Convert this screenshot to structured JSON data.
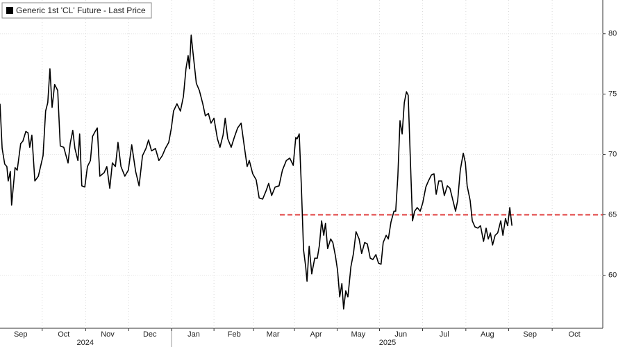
{
  "chart_data": {
    "type": "line",
    "series": [
      {
        "name": "Generic 1st 'CL' Future - Last Price",
        "color": "#000000",
        "values": [
          74.2,
          70.5,
          69.2,
          69.0,
          67.8,
          68.6,
          65.8,
          68.9,
          68.7,
          70.9,
          71.1,
          71.9,
          71.8,
          70.6,
          71.6,
          67.8,
          68.2,
          69.9,
          73.6,
          74.3,
          77.1,
          73.9,
          75.8,
          75.3,
          70.7,
          70.6,
          69.3,
          70.9,
          72.0,
          70.5,
          69.5,
          71.7,
          67.4,
          67.3,
          69.0,
          69.5,
          71.5,
          71.9,
          72.2,
          68.2,
          68.5,
          69.0,
          67.2,
          69.3,
          69.0,
          71.0,
          69.0,
          68.2,
          68.7,
          70.8,
          68.6,
          67.4,
          69.9,
          70.5,
          71.2,
          70.3,
          70.5,
          69.5,
          69.9,
          70.5,
          71.0,
          72.2,
          73.6,
          74.2,
          73.6,
          74.8,
          77.1,
          78.2,
          77.1,
          79.9,
          78.5,
          75.9,
          75.3,
          74.2,
          73.2,
          73.4,
          72.6,
          73.0,
          71.3,
          70.6,
          71.6,
          73.0,
          71.3,
          70.6,
          71.4,
          72.2,
          72.6,
          70.5,
          69.0,
          69.5,
          68.4,
          67.9,
          66.4,
          66.3,
          67.0,
          67.6,
          66.6,
          67.3,
          67.4,
          68.7,
          69.5,
          69.7,
          69.1,
          71.4,
          71.3,
          71.7,
          67.3,
          62.1,
          60.7,
          59.5,
          62.4,
          60.1,
          61.4,
          61.4,
          62.5,
          64.5,
          63.3,
          64.3,
          62.2,
          63.0,
          62.7,
          61.6,
          60.4,
          58.2,
          59.3,
          57.2,
          58.7,
          58.2,
          60.7,
          61.8,
          63.6,
          63.0,
          61.8,
          62.7,
          62.6,
          61.4,
          61.3,
          61.7,
          61.0,
          60.9,
          62.7,
          63.3,
          63.0,
          64.4,
          65.3,
          65.3,
          68.2,
          72.8,
          71.7,
          74.3,
          75.2,
          74.9,
          69.6,
          64.5,
          65.3,
          65.6,
          65.3,
          66.0,
          67.3,
          67.8,
          68.3,
          68.4,
          66.7,
          67.8,
          67.8,
          66.6,
          67.4,
          67.2,
          66.2,
          65.3,
          66.2,
          68.7,
          70.1,
          69.3,
          67.4,
          66.2,
          64.5,
          64.0,
          63.9,
          64.1,
          62.8,
          63.9,
          63.0,
          63.5,
          62.5,
          63.3,
          63.5,
          64.5,
          63.3,
          64.7,
          64.1,
          65.6,
          64.1
        ]
      }
    ],
    "x": [
      0,
      0.05,
      0.11,
      0.16,
      0.19,
      0.24,
      0.27,
      0.35,
      0.4,
      0.48,
      0.53,
      0.6,
      0.65,
      0.69,
      0.74,
      0.81,
      0.89,
      1.0,
      1.06,
      1.11,
      1.16,
      1.21,
      1.27,
      1.34,
      1.4,
      1.48,
      1.58,
      1.63,
      1.69,
      1.74,
      1.81,
      1.85,
      1.9,
      1.97,
      2.03,
      2.1,
      2.15,
      2.21,
      2.26,
      2.32,
      2.42,
      2.48,
      2.55,
      2.61,
      2.68,
      2.74,
      2.81,
      2.9,
      2.98,
      3.06,
      3.15,
      3.23,
      3.31,
      3.39,
      3.45,
      3.52,
      3.61,
      3.69,
      3.77,
      3.84,
      3.92,
      3.98,
      4.03,
      4.11,
      4.19,
      4.26,
      4.32,
      4.37,
      4.4,
      4.44,
      4.48,
      4.56,
      4.63,
      4.71,
      4.77,
      4.84,
      4.9,
      4.97,
      5.05,
      5.11,
      5.18,
      5.23,
      5.29,
      5.37,
      5.44,
      5.52,
      5.6,
      5.68,
      5.74,
      5.79,
      5.87,
      5.95,
      6.02,
      6.1,
      6.18,
      6.24,
      6.31,
      6.39,
      6.48,
      6.56,
      6.65,
      6.73,
      6.81,
      6.87,
      6.9,
      6.95,
      7.0,
      7.05,
      7.1,
      7.13,
      7.18,
      7.24,
      7.31,
      7.37,
      7.42,
      7.47,
      7.52,
      7.56,
      7.61,
      7.68,
      7.73,
      7.79,
      7.84,
      7.89,
      7.94,
      7.98,
      8.03,
      8.08,
      8.15,
      8.21,
      8.27,
      8.34,
      8.4,
      8.47,
      8.53,
      8.6,
      8.66,
      8.73,
      8.79,
      8.85,
      8.9,
      8.97,
      9.02,
      9.08,
      9.15,
      9.19,
      9.24,
      9.29,
      9.34,
      9.39,
      9.44,
      9.48,
      9.53,
      9.58,
      9.63,
      9.69,
      9.76,
      9.82,
      9.89,
      9.95,
      10.02,
      10.08,
      10.13,
      10.19,
      10.26,
      10.32,
      10.39,
      10.45,
      10.52,
      10.58,
      10.63,
      10.69,
      10.76,
      10.81,
      10.85,
      10.92,
      10.97,
      11.03,
      11.1,
      11.16,
      11.23,
      11.29,
      11.34,
      11.39,
      11.44,
      11.5,
      11.56,
      11.63,
      11.68,
      11.74,
      11.79,
      11.84,
      11.89
    ],
    "xlim": [
      0,
      14
    ],
    "xticks": [
      {
        "value": 0.48,
        "label": "Sep"
      },
      {
        "value": 1.48,
        "label": "Oct"
      },
      {
        "value": 2.5,
        "label": "Nov"
      },
      {
        "value": 3.48,
        "label": "Dec"
      },
      {
        "value": 4.5,
        "label": "Jan"
      },
      {
        "value": 5.44,
        "label": "Feb"
      },
      {
        "value": 6.34,
        "label": "Mar"
      },
      {
        "value": 7.34,
        "label": "Apr"
      },
      {
        "value": 8.32,
        "label": "May"
      },
      {
        "value": 9.31,
        "label": "Jun"
      },
      {
        "value": 10.32,
        "label": "Jul"
      },
      {
        "value": 11.32,
        "label": "Aug"
      },
      {
        "value": 12.31,
        "label": "Sep"
      },
      {
        "value": 13.34,
        "label": "Oct"
      }
    ],
    "year_labels": [
      {
        "value": 1.98,
        "label": "2024"
      },
      {
        "value": 9.0,
        "label": "2025"
      }
    ],
    "ylim": [
      55.6,
      82.8
    ],
    "yticks": [
      60,
      65,
      70,
      75,
      80
    ],
    "reference_line": {
      "value": 65,
      "x_start": 6.5,
      "color": "#e04040"
    },
    "grid": true
  }
}
